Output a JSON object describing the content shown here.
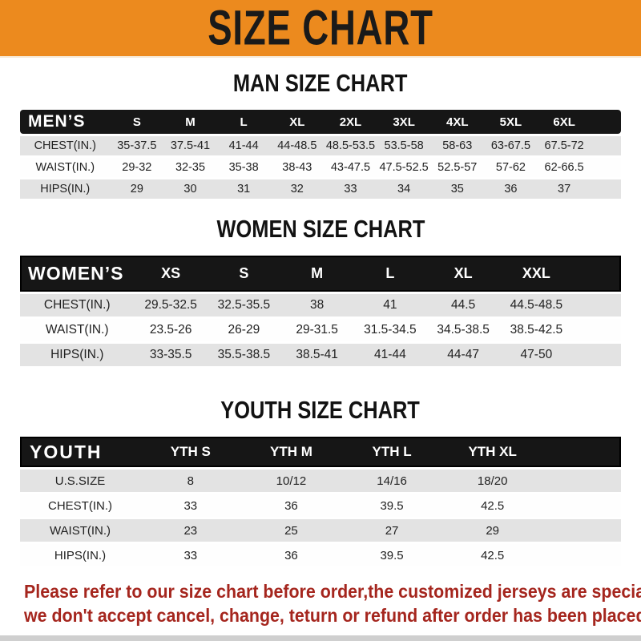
{
  "banner": {
    "title": "SIZE CHART"
  },
  "colors": {
    "banner_bg": "#EC8A1E",
    "header_bar": "#161616",
    "row_gray": "#E3E3E3",
    "note_red": "#A5261E"
  },
  "sections": [
    {
      "heading": "MAN SIZE CHART",
      "header_label": "MEN’S",
      "columns": [
        "S",
        "M",
        "L",
        "XL",
        "2XL",
        "3XL",
        "4XL",
        "5XL",
        "6XL"
      ],
      "rows": [
        {
          "label": "CHEST(IN.)",
          "values": [
            "35-37.5",
            "37.5-41",
            "41-44",
            "44-48.5",
            "48.5-53.5",
            "53.5-58",
            "58-63",
            "63-67.5",
            "67.5-72"
          ]
        },
        {
          "label": "WAIST(IN.)",
          "values": [
            "29-32",
            "32-35",
            "35-38",
            "38-43",
            "43-47.5",
            "47.5-52.5",
            "52.5-57",
            "57-62",
            "62-66.5"
          ]
        },
        {
          "label": "HIPS(IN.)",
          "values": [
            "29",
            "30",
            "31",
            "32",
            "33",
            "34",
            "35",
            "36",
            "37"
          ]
        }
      ]
    },
    {
      "heading": "WOMEN SIZE CHART",
      "header_label": "WOMEN’S",
      "columns": [
        "XS",
        "S",
        "M",
        "L",
        "XL",
        "XXL"
      ],
      "rows": [
        {
          "label": "CHEST(IN.)",
          "values": [
            "29.5-32.5",
            "32.5-35.5",
            "38",
            "41",
            "44.5",
            "44.5-48.5"
          ]
        },
        {
          "label": "WAIST(IN.)",
          "values": [
            "23.5-26",
            "26-29",
            "29-31.5",
            "31.5-34.5",
            "34.5-38.5",
            "38.5-42.5"
          ]
        },
        {
          "label": "HIPS(IN.)",
          "values": [
            "33-35.5",
            "35.5-38.5",
            "38.5-41",
            "41-44",
            "44-47",
            "47-50"
          ]
        }
      ]
    },
    {
      "heading": "YOUTH SIZE CHART",
      "header_label": "YOUTH",
      "columns": [
        "YTH S",
        "YTH M",
        "YTH L",
        "YTH XL"
      ],
      "rows": [
        {
          "label": "U.S.SIZE",
          "values": [
            "8",
            "10/12",
            "14/16",
            "18/20"
          ]
        },
        {
          "label": "CHEST(IN.)",
          "values": [
            "33",
            "36",
            "39.5",
            "42.5"
          ]
        },
        {
          "label": "WAIST(IN.)",
          "values": [
            "23",
            "25",
            "27",
            "29"
          ]
        },
        {
          "label": "HIPS(IN.)",
          "values": [
            "33",
            "36",
            "39.5",
            "42.5"
          ]
        }
      ]
    }
  ],
  "footer": {
    "lines": [
      "Please refer to our size chart before order,the customized jerseys are special products,",
      "we don't accept cancel, change, teturn or refund after order has been placed!"
    ]
  }
}
